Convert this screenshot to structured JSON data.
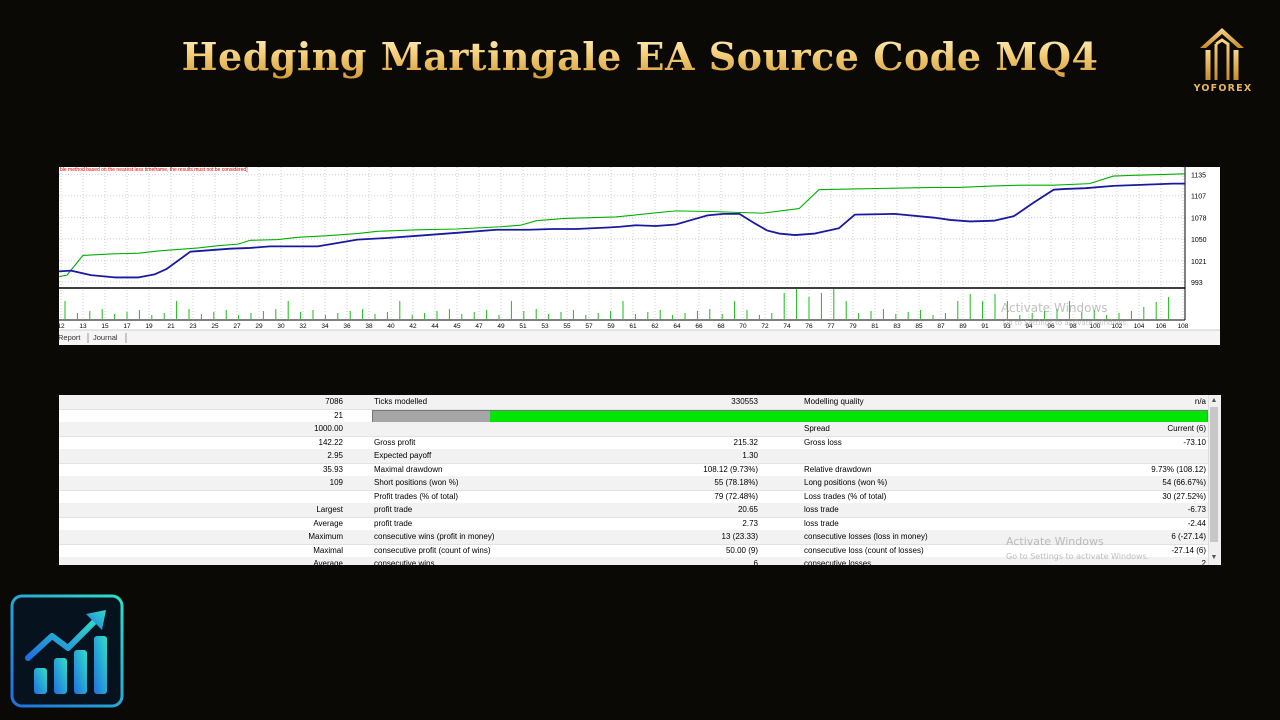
{
  "header": {
    "title": "Hedging Martingale EA Source Code MQ4",
    "brand_name": "YOFOREX"
  },
  "chart": {
    "warning_text": "ble method based on the nearest less timeframe, the results must not be considered]",
    "y_labels": [
      "1135",
      "1107",
      "1078",
      "1050",
      "1021",
      "993"
    ],
    "x_labels": [
      "12",
      "13",
      "15",
      "17",
      "19",
      "21",
      "23",
      "25",
      "27",
      "29",
      "30",
      "32",
      "34",
      "36",
      "38",
      "40",
      "42",
      "44",
      "45",
      "47",
      "49",
      "51",
      "53",
      "55",
      "57",
      "59",
      "61",
      "62",
      "64",
      "66",
      "68",
      "70",
      "72",
      "74",
      "76",
      "77",
      "79",
      "81",
      "83",
      "85",
      "87",
      "89",
      "91",
      "93",
      "94",
      "96",
      "98",
      "100",
      "102",
      "104",
      "106",
      "108"
    ],
    "tabs": [
      "Report",
      "Journal"
    ],
    "balance_color": "#00b000",
    "equity_color": "#1a1aa0",
    "watermark_title": "Activate Windows",
    "watermark_sub": "Go to Settings to activate Windows."
  },
  "chart_data": {
    "type": "line",
    "ylim": [
      985,
      1145
    ],
    "x_labels_shown": "trade numbers 12..108",
    "series": [
      {
        "name": "",
        "role": "balance",
        "color": "#00b000",
        "x": [
          0,
          2,
          6,
          13,
          20,
          25,
          30,
          35,
          40,
          45,
          48,
          55,
          60,
          67,
          75,
          80,
          90,
          100,
          111,
          116,
          120,
          127,
          140,
          155,
          165,
          170,
          177,
          186,
          191,
          200,
          210,
          220,
          226,
          235,
          242,
          250,
          259,
          265,
          270,
          277,
          283
        ],
        "y": [
          1000,
          1002,
          1028,
          1030,
          1031,
          1034,
          1036,
          1038,
          1041,
          1043,
          1048,
          1049,
          1052,
          1054,
          1057,
          1060,
          1062,
          1063,
          1066,
          1068,
          1074,
          1077,
          1079,
          1087,
          1086,
          1085,
          1084,
          1090,
          1115,
          1116,
          1117,
          1118,
          1118,
          1120,
          1121,
          1121,
          1123,
          1133,
          1134,
          1135,
          1136
        ]
      },
      {
        "name": "",
        "role": "equity",
        "color": "#1a1aa0",
        "x": [
          0,
          3,
          8,
          14,
          20,
          24,
          27,
          33,
          38,
          43,
          48,
          53,
          58,
          65,
          75,
          82,
          90,
          100,
          110,
          118,
          124,
          130,
          138,
          141,
          145,
          150,
          155,
          159,
          163,
          167,
          171,
          175,
          178,
          181,
          185,
          190,
          196,
          200,
          210,
          220,
          224,
          229,
          235,
          240,
          245,
          250,
          253,
          258,
          265,
          270,
          275,
          280,
          283
        ],
        "y": [
          1007,
          1008,
          1002,
          999,
          999,
          1003,
          1010,
          1033,
          1035,
          1037,
          1038,
          1040,
          1040,
          1040,
          1049,
          1051,
          1054,
          1058,
          1062,
          1062,
          1063,
          1063,
          1065,
          1066,
          1068,
          1067,
          1069,
          1075,
          1081,
          1083,
          1083,
          1070,
          1061,
          1057,
          1055,
          1057,
          1064,
          1082,
          1083,
          1078,
          1075,
          1073,
          1074,
          1080,
          1098,
          1115,
          1116,
          1117,
          1120,
          1121,
          1122,
          1123,
          1123
        ]
      }
    ],
    "volume_bars_note": "per-trade lot size bars in lower pane"
  },
  "report": {
    "rows": [
      {
        "c1": "7086",
        "c2": "Ticks modelled",
        "c3": "330553",
        "c4": "Modelling quality",
        "c5": "n/a"
      },
      {
        "c1": "21",
        "quality_bar": true,
        "quality_gray_fraction": 0.14
      },
      {
        "c1": "1000.00",
        "c2": "",
        "c3": "",
        "c4": "Spread",
        "c5": "Current (6)"
      },
      {
        "c1": "142.22",
        "c2": "Gross profit",
        "c3": "215.32",
        "c4": "Gross loss",
        "c5": "-73.10"
      },
      {
        "c1": "2.95",
        "c2": "Expected payoff",
        "c3": "1.30",
        "c4": "",
        "c5": ""
      },
      {
        "c1": "35.93",
        "c2": "Maximal drawdown",
        "c3": "108.12 (9.73%)",
        "c4": "Relative drawdown",
        "c5": "9.73% (108.12)"
      },
      {
        "c1": "109",
        "c2": "Short positions (won %)",
        "c3": "55 (78.18%)",
        "c4": "Long positions (won %)",
        "c5": "54 (66.67%)"
      },
      {
        "c1": "",
        "c2": "Profit trades (% of total)",
        "c3": "79 (72.48%)",
        "c4": "Loss trades (% of total)",
        "c5": "30 (27.52%)"
      },
      {
        "c1": "Largest",
        "c2": "profit trade",
        "c3": "20.65",
        "c4": "loss trade",
        "c5": "-6.73"
      },
      {
        "c1": "Average",
        "c2": "profit trade",
        "c3": "2.73",
        "c4": "loss trade",
        "c5": "-2.44"
      },
      {
        "c1": "Maximum",
        "c2": "consecutive wins (profit in money)",
        "c3": "13 (23.33)",
        "c4": "consecutive losses (loss in money)",
        "c5": "6 (-27.14)"
      },
      {
        "c1": "Maximal",
        "c2": "consecutive profit (count of wins)",
        "c3": "50.00 (9)",
        "c4": "consecutive loss (count of losses)",
        "c5": "-27.14 (6)"
      },
      {
        "c1": "Average",
        "c2": "consecutive wins",
        "c3": "6",
        "c4": "consecutive losses",
        "c5": "2"
      }
    ],
    "watermark_title": "Activate Windows",
    "watermark_sub": "Go to Settings to activate Windows."
  }
}
